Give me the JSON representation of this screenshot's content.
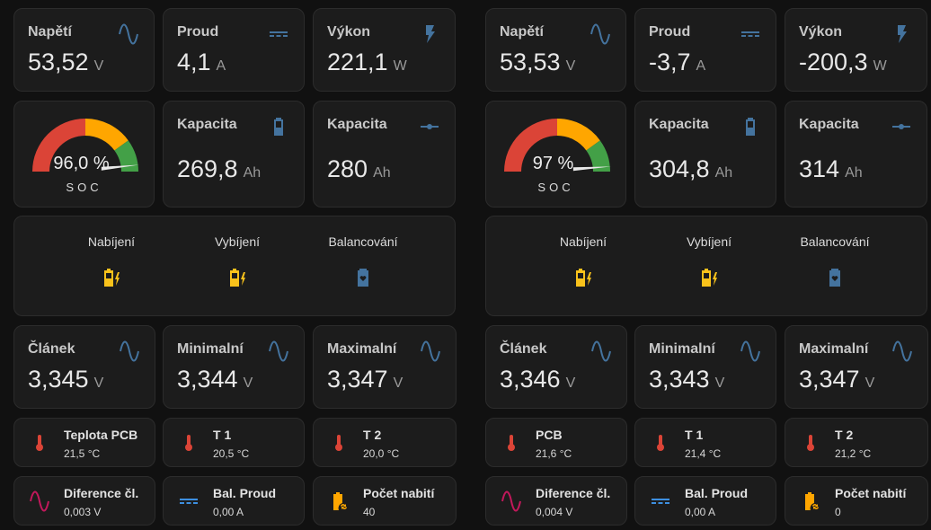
{
  "colors": {
    "accent": "#44739e",
    "red": "#db4437",
    "yellow": "#ffa600",
    "green": "#43a047",
    "amber": "#fdd835",
    "pink": "#c2185b"
  },
  "panels": [
    {
      "voltage": {
        "label": "Napětí",
        "value": "53,52",
        "unit": "V",
        "icon": "sine-wave-icon"
      },
      "current": {
        "label": "Proud",
        "value": "4,1",
        "unit": "A",
        "icon": "current-dc-icon"
      },
      "power": {
        "label": "Výkon",
        "value": "221,1",
        "unit": "W",
        "icon": "flash-icon"
      },
      "soc": {
        "value": 96.0,
        "display": "96,0 %",
        "label": "SOC"
      },
      "capacity_remaining": {
        "label": "Kapacita",
        "value": "269,8",
        "unit": "Ah",
        "icon": "battery-icon"
      },
      "capacity_total": {
        "label": "Kapacita",
        "value": "280",
        "unit": "Ah",
        "icon": "slider-icon"
      },
      "status": [
        {
          "label": "Nabíjení",
          "icon": "battery-charging-icon"
        },
        {
          "label": "Vybíjení",
          "icon": "battery-charging-icon"
        },
        {
          "label": "Balancování",
          "icon": "battery-heart-icon"
        }
      ],
      "cells": [
        {
          "label": "Článek",
          "value": "3,345",
          "unit": "V"
        },
        {
          "label": "Minimalní",
          "value": "3,344",
          "unit": "V"
        },
        {
          "label": "Maximalní",
          "value": "3,347",
          "unit": "V"
        }
      ],
      "temps": [
        {
          "label": "Teplota PCB",
          "value": "21,5 °C"
        },
        {
          "label": "T 1",
          "value": "20,5 °C"
        },
        {
          "label": "T 2",
          "value": "20,0 °C"
        }
      ],
      "extra": [
        {
          "label": "Diference čl.",
          "value": "0,003 V",
          "icon": "sine-wave-icon"
        },
        {
          "label": "Bal. Proud",
          "value": "0,00 A",
          "icon": "current-dc-icon"
        },
        {
          "label": "Počet nabití",
          "value": "40",
          "icon": "battery-sync-icon"
        }
      ]
    },
    {
      "voltage": {
        "label": "Napětí",
        "value": "53,53",
        "unit": "V",
        "icon": "sine-wave-icon"
      },
      "current": {
        "label": "Proud",
        "value": "-3,7",
        "unit": "A",
        "icon": "current-dc-icon"
      },
      "power": {
        "label": "Výkon",
        "value": "-200,3",
        "unit": "W",
        "icon": "flash-icon"
      },
      "soc": {
        "value": 97,
        "display": "97 %",
        "label": "SOC"
      },
      "capacity_remaining": {
        "label": "Kapacita",
        "value": "304,8",
        "unit": "Ah",
        "icon": "battery-icon"
      },
      "capacity_total": {
        "label": "Kapacita",
        "value": "314",
        "unit": "Ah",
        "icon": "slider-icon"
      },
      "status": [
        {
          "label": "Nabíjení",
          "icon": "battery-charging-icon"
        },
        {
          "label": "Vybíjení",
          "icon": "battery-charging-icon"
        },
        {
          "label": "Balancování",
          "icon": "battery-heart-icon"
        }
      ],
      "cells": [
        {
          "label": "Článek",
          "value": "3,346",
          "unit": "V"
        },
        {
          "label": "Minimalní",
          "value": "3,343",
          "unit": "V"
        },
        {
          "label": "Maximalní",
          "value": "3,347",
          "unit": "V"
        }
      ],
      "temps": [
        {
          "label": "PCB",
          "value": "21,6 °C"
        },
        {
          "label": "T 1",
          "value": "21,4 °C"
        },
        {
          "label": "T 2",
          "value": "21,2 °C"
        }
      ],
      "extra": [
        {
          "label": "Diference čl.",
          "value": "0,004 V",
          "icon": "sine-wave-icon"
        },
        {
          "label": "Bal. Proud",
          "value": "0,00 A",
          "icon": "current-dc-icon"
        },
        {
          "label": "Počet nabití",
          "value": "0",
          "icon": "battery-sync-icon"
        }
      ]
    }
  ]
}
